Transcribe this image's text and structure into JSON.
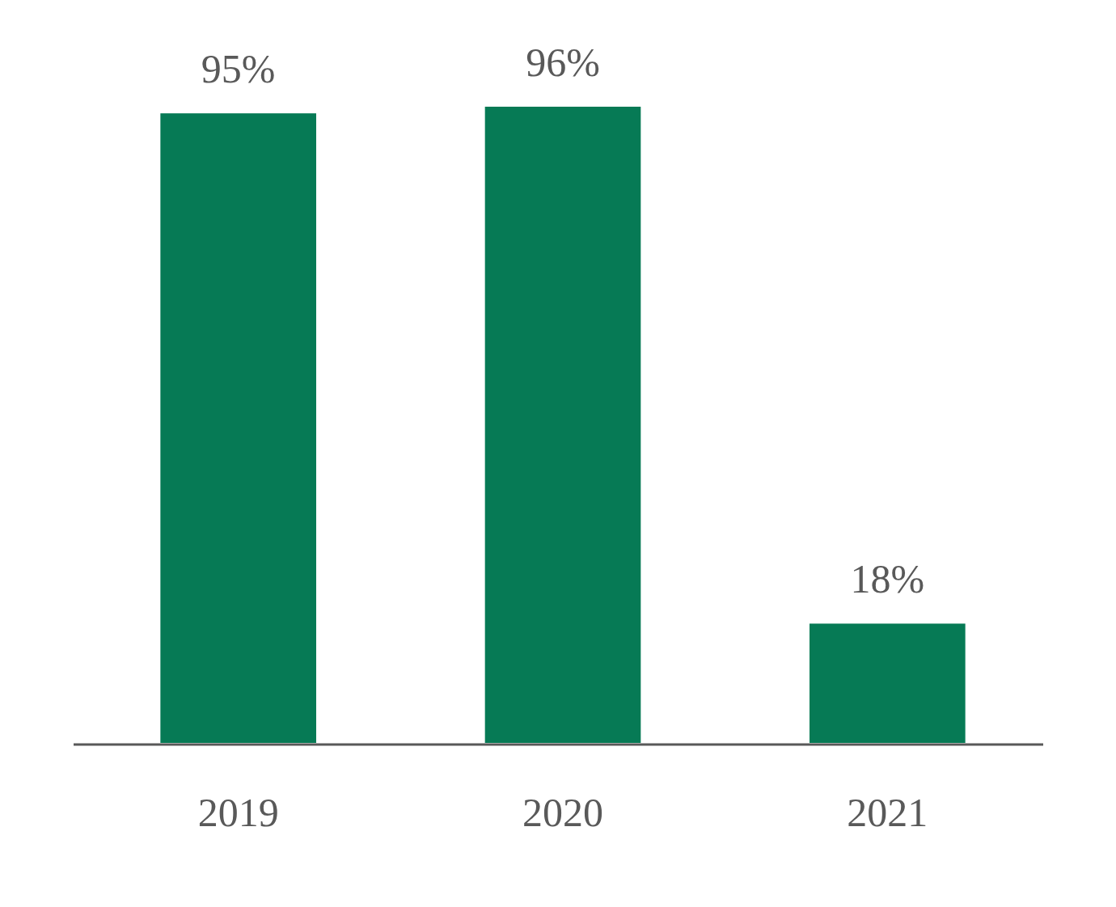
{
  "chart_data": {
    "type": "bar",
    "categories": [
      "2019",
      "2020",
      "2021"
    ],
    "values": [
      95,
      96,
      18
    ],
    "value_labels": [
      "95%",
      "96%",
      "18%"
    ],
    "color": "#067a55"
  }
}
